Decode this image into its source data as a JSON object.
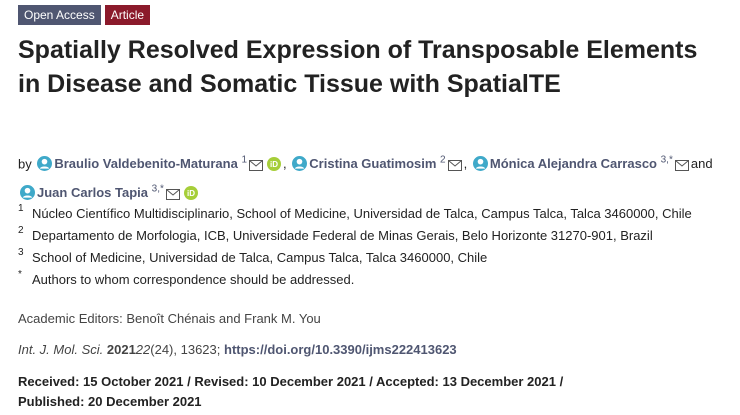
{
  "badges": [
    "Open Access",
    "Article"
  ],
  "title": "Spatially Resolved Expression of Transposable Elements in Disease and Somatic Tissue with SpatialTE",
  "authors_prefix": "by",
  "authors": [
    {
      "name": "Braulio Valdebenito-Maturana",
      "sup": "1",
      "orcid": true
    },
    {
      "name": "Cristina Guatimosim",
      "sup": "2",
      "orcid": false
    },
    {
      "name": "Mónica Alejandra Carrasco",
      "sup": "3,*",
      "orcid": false
    },
    {
      "name": "Juan Carlos Tapia",
      "sup": "3,*",
      "orcid": true
    }
  ],
  "separators": [
    ",",
    ",",
    "and"
  ],
  "affiliations": [
    {
      "mark": "1",
      "text": "Núcleo Científico Multidisciplinario, School of Medicine, Universidad de Talca, Campus Talca, Talca 3460000, Chile"
    },
    {
      "mark": "2",
      "text": "Departamento de Morfologia, ICB, Universidade Federal de Minas Gerais, Belo Horizonte 31270-901, Brazil"
    },
    {
      "mark": "3",
      "text": "School of Medicine, Universidad de Talca, Campus Talca, Talca 3460000, Chile"
    },
    {
      "mark": "*",
      "text": "Authors to whom correspondence should be addressed."
    }
  ],
  "academic_editors": "Academic Editors: Benoît Chénais and Frank M. You",
  "citation": {
    "journal": "Int. J. Mol. Sci.",
    "year": "2021",
    "volume": "22",
    "issue_pages": "(24), 13623;",
    "doi": "https://doi.org/10.3390/ijms222413623"
  },
  "dates": [
    "Received: 15 October 2021",
    "Revised: 10 December 2021",
    "Accepted: 13 December 2021",
    "Published: 20 December 2021"
  ],
  "date_separator": "/"
}
